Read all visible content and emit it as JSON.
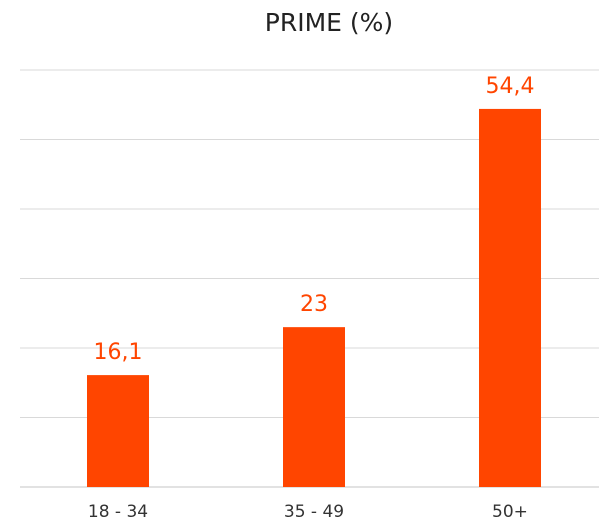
{
  "chart_data": {
    "type": "bar",
    "title": "PRIME (%)",
    "xlabel": "",
    "ylabel": "",
    "categories": [
      "18 - 34",
      "35 - 49",
      "50+"
    ],
    "values": [
      16.1,
      23,
      54.4
    ],
    "value_labels": [
      "16,1",
      "23",
      "54,4"
    ],
    "ylim": [
      0,
      60
    ],
    "grid": true,
    "legend": "none",
    "colors": {
      "bar": "#ff4500",
      "label": "#ff4500",
      "grid": "#d9d9d9",
      "title": "#222222",
      "tick": "#333333"
    }
  }
}
